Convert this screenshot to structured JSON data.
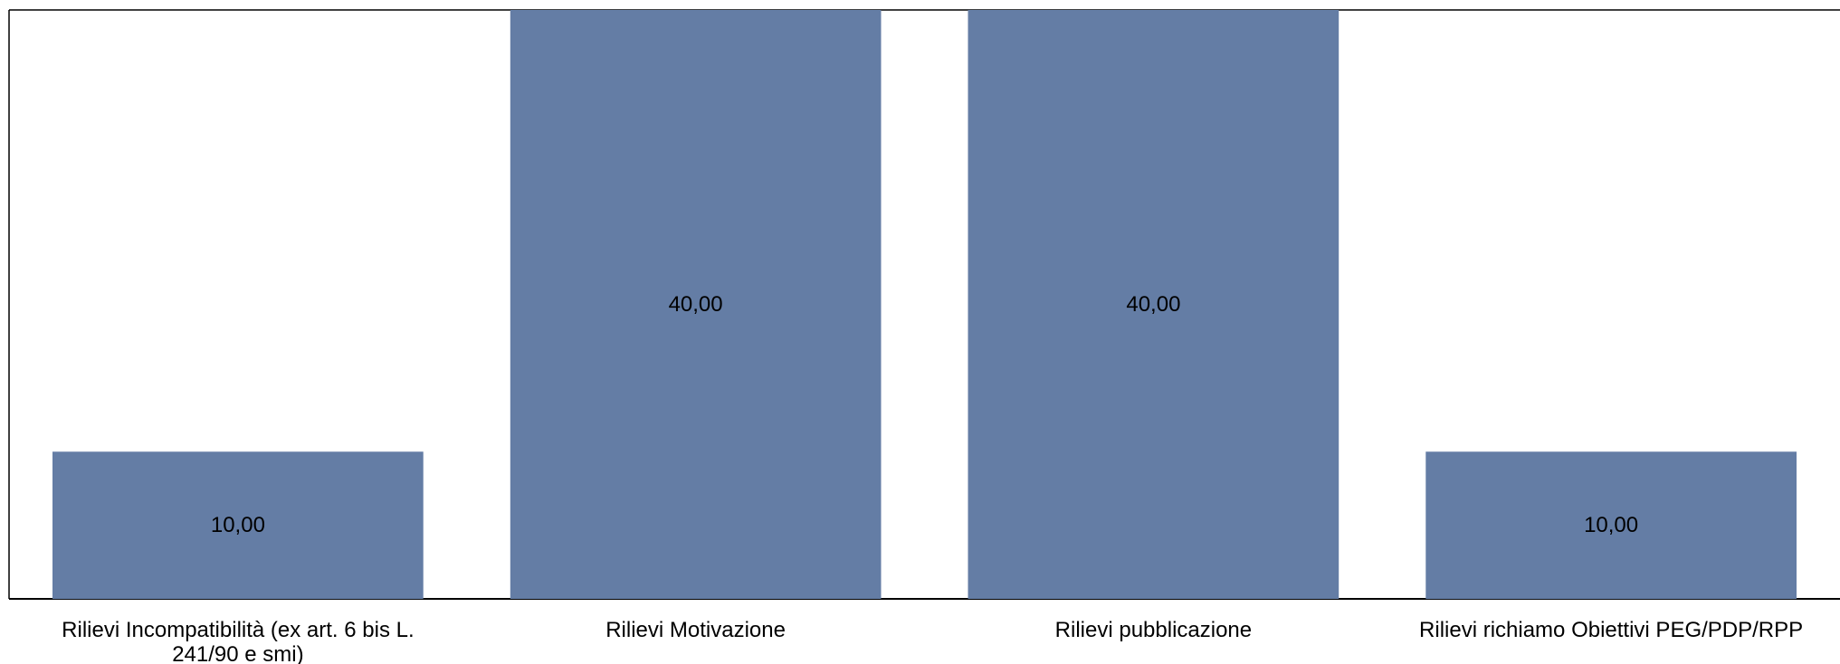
{
  "chart_data": {
    "type": "bar",
    "categories": [
      [
        "Rilievi Incompatibilità (ex art. 6 bis L.",
        "241/90 e smi)"
      ],
      [
        "Rilievi Motivazione"
      ],
      [
        "Rilievi pubblicazione"
      ],
      [
        "Rilievi richiamo Obiettivi PEG/PDP/RPP"
      ]
    ],
    "values": [
      10,
      40,
      40,
      10
    ],
    "data_labels": [
      "10,00",
      "40,00",
      "40,00",
      "10,00"
    ],
    "ylim": [
      0,
      40
    ],
    "grid": false,
    "legend": "none",
    "bar_color": "#647da5"
  }
}
